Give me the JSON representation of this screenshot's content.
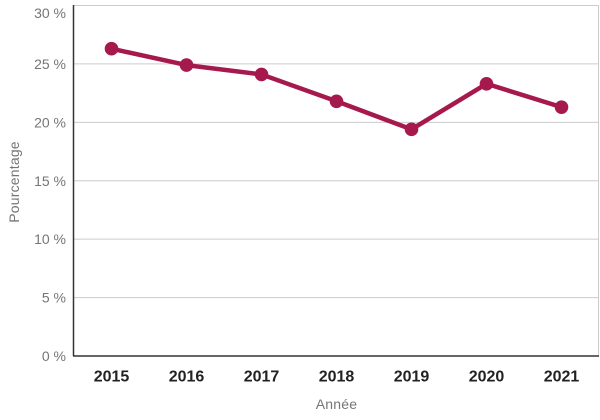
{
  "chart_data": {
    "type": "line",
    "title": "",
    "categories": [
      "2015",
      "2016",
      "2017",
      "2018",
      "2019",
      "2020",
      "2021"
    ],
    "series": [
      {
        "name": "Pourcentage",
        "values": [
          26.3,
          24.9,
          24.1,
          21.8,
          19.4,
          23.3,
          21.3
        ]
      }
    ],
    "xlabel": "Année",
    "ylabel": "Pourcentage",
    "ylim": [
      0,
      30
    ],
    "ytick_step": 5,
    "ytick_labels": [
      "0 %",
      "5 %",
      "10 %",
      "15 %",
      "20 %",
      "25 %",
      "30 %"
    ],
    "grid": true,
    "legend_position": "none",
    "colors": {
      "line": "#A5194D",
      "marker": "#A5194D",
      "grid": "#CCCCCC",
      "axis": "#333333",
      "ytick_label": "#757575",
      "xtick_label": "#222222",
      "axis_title": "#757575",
      "background": "#FFFFFF"
    }
  }
}
